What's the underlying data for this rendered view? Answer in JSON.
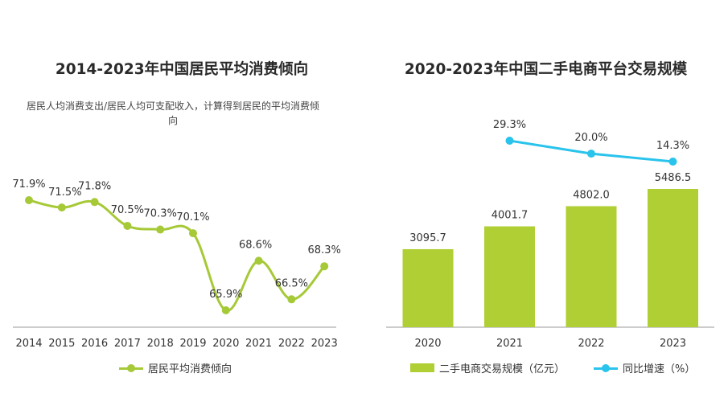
{
  "colors": {
    "green": "#a6c937",
    "bar_green": "#b0cf34",
    "blue": "#29c3ec",
    "axis": "#999999",
    "label": "#333333"
  },
  "left": {
    "title": "2014-2023年中国居民平均消费倾向",
    "note": "居民人均消费支出/居民人均可支配收入，计算得到居民的平均消费倾向",
    "legend_label": "居民平均消费倾向"
  },
  "right": {
    "title": "2020-2023年中国二手电商平台交易规模",
    "legend_bar_label": "二手电商交易规模（亿元）",
    "legend_line_label": "同比增速（%）"
  },
  "chart_data": [
    {
      "type": "line",
      "title": "2014-2023年中国居民平均消费倾向",
      "categories": [
        "2014",
        "2015",
        "2016",
        "2017",
        "2018",
        "2019",
        "2020",
        "2021",
        "2022",
        "2023"
      ],
      "series": [
        {
          "name": "居民平均消费倾向",
          "values": [
            71.9,
            71.5,
            71.8,
            70.5,
            70.3,
            70.1,
            65.9,
            68.6,
            66.5,
            68.3
          ],
          "labels": [
            "71.9%",
            "71.5%",
            "71.8%",
            "70.5%",
            "70.3%",
            "70.1%",
            "65.9%",
            "68.6%",
            "66.5%",
            "68.3%"
          ]
        }
      ],
      "ylim": [
        64,
        74
      ],
      "grid": false,
      "legend": "bottom"
    },
    {
      "type": "bar",
      "title": "2020-2023年中国二手电商平台交易规模",
      "categories": [
        "2020",
        "2021",
        "2022",
        "2023"
      ],
      "series": [
        {
          "name": "二手电商交易规模（亿元）",
          "type": "bar",
          "values": [
            3095.7,
            4001.7,
            4802.0,
            5486.5
          ],
          "labels": [
            "3095.7",
            "4001.7",
            "4802.0",
            "5486.5"
          ]
        },
        {
          "name": "同比增速（%）",
          "type": "line",
          "values": [
            null,
            29.3,
            20.0,
            14.3
          ],
          "labels": [
            "",
            "29.3%",
            "20.0%",
            "14.3%"
          ]
        }
      ],
      "grid": false,
      "legend": "bottom"
    }
  ]
}
